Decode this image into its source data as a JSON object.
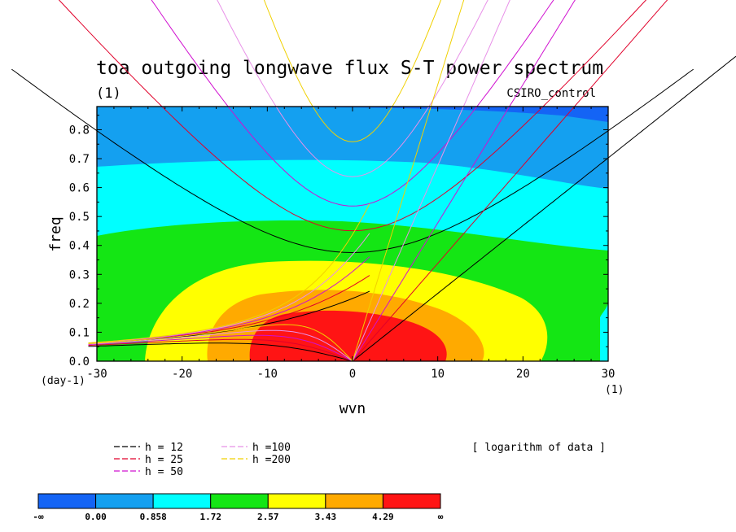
{
  "chart_data": {
    "type": "heatmap",
    "title": "toa outgoing longwave flux S-T power spectrum",
    "unit_label": "(1)",
    "dataset": "CSIRO_control",
    "xlabel": "wvn",
    "ylabel": "freq",
    "x_unit": "(1)",
    "y_unit": "(day-1)",
    "xlim": [
      -30,
      30
    ],
    "ylim": [
      0,
      0.88
    ],
    "xticks": [
      "-30",
      "-20",
      "-10",
      "0",
      "10",
      "20",
      "30"
    ],
    "yticks": [
      "0.0",
      "0.1",
      "0.2",
      "0.3",
      "0.4",
      "0.5",
      "0.6",
      "0.7",
      "0.8"
    ],
    "note": "[ logarithm of data ]",
    "colorbar": {
      "labels": [
        "-∞",
        "0.00",
        "0.858",
        "1.72",
        "2.57",
        "3.43",
        "4.29",
        "∞"
      ],
      "colors": [
        "#1464f5",
        "#14a0f0",
        "#00ffff",
        "#14e614",
        "#ffff00",
        "#ffaa00",
        "#ff1414"
      ]
    },
    "dispersion_legend": [
      {
        "label": "h = 12",
        "color": "#000000",
        "h": 12
      },
      {
        "label": "h = 25",
        "color": "#e0002a",
        "h": 25
      },
      {
        "label": "h = 50",
        "color": "#d010d0",
        "h": 50
      },
      {
        "label": "h =100",
        "color": "#e890e8",
        "h": 100
      },
      {
        "label": "h =200",
        "color": "#f0d000",
        "h": 200
      }
    ]
  }
}
